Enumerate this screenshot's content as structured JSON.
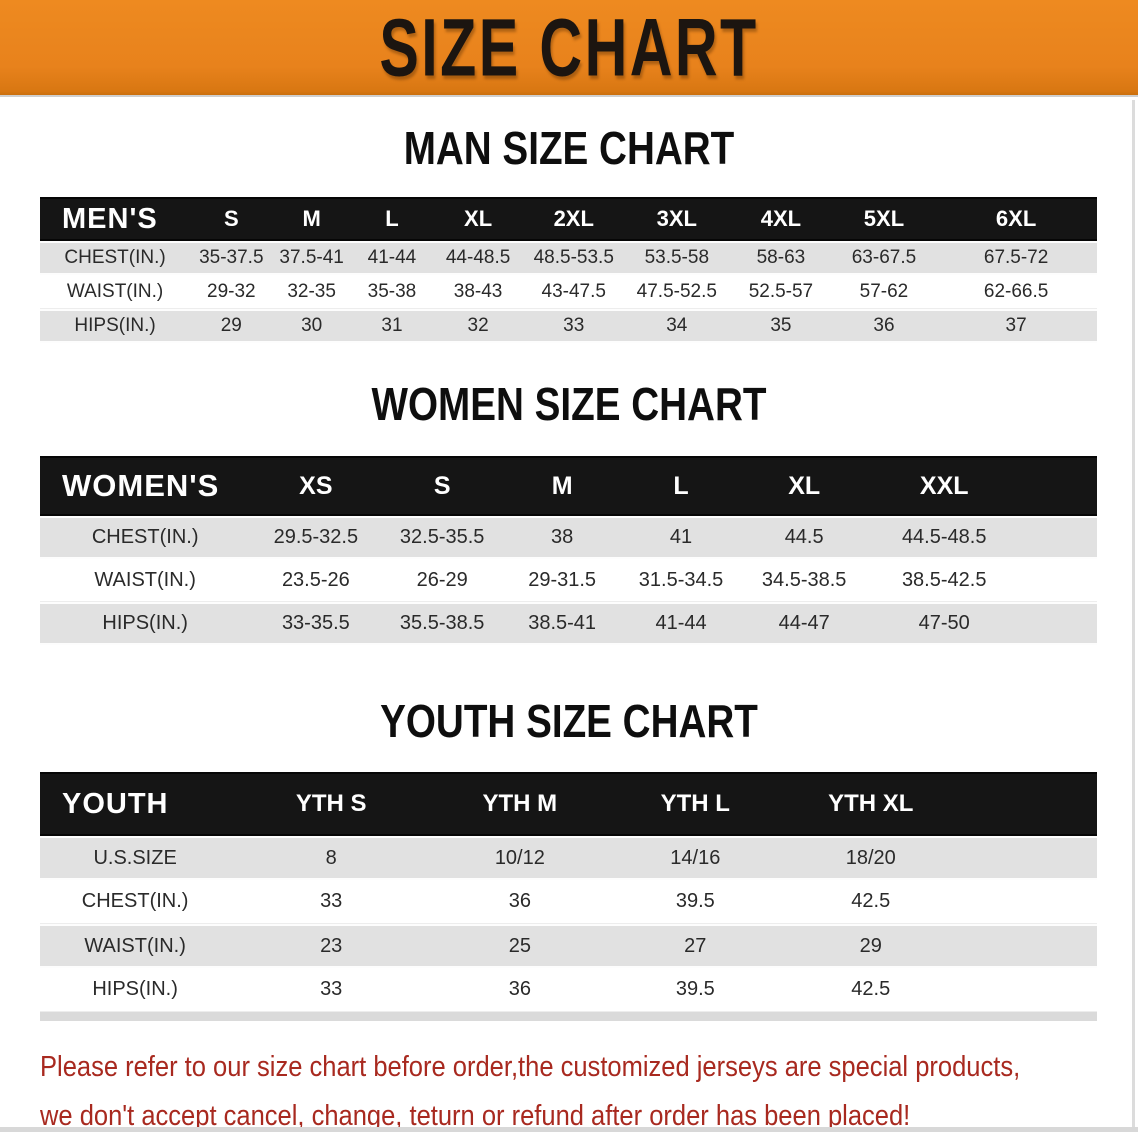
{
  "banner": {
    "title": "SIZE CHART"
  },
  "colors": {
    "banner_orange": "#E8821C",
    "table_header_black": "#151515",
    "stripe_gray": "#E1E1E1",
    "note_red": "#A8291F"
  },
  "sections": [
    {
      "heading": "MAN SIZE CHART",
      "table": {
        "label_header": "MEN'S",
        "columns": [
          "S",
          "M",
          "L",
          "XL",
          "2XL",
          "3XL",
          "4XL",
          "5XL",
          "6XL"
        ],
        "rows": [
          {
            "label": "CHEST(IN.)",
            "values": [
              "35-37.5",
              "37.5-41",
              "41-44",
              "44-48.5",
              "48.5-53.5",
              "53.5-58",
              "58-63",
              "63-67.5",
              "67.5-72"
            ]
          },
          {
            "label": "WAIST(IN.)",
            "values": [
              "29-32",
              "32-35",
              "35-38",
              "38-43",
              "43-47.5",
              "47.5-52.5",
              "52.5-57",
              "57-62",
              "62-66.5"
            ]
          },
          {
            "label": "HIPS(IN.)",
            "values": [
              "29",
              "30",
              "31",
              "32",
              "33",
              "34",
              "35",
              "36",
              "37"
            ]
          }
        ]
      }
    },
    {
      "heading": "WOMEN SIZE CHART",
      "table": {
        "label_header": "WOMEN'S",
        "columns": [
          "XS",
          "S",
          "M",
          "L",
          "XL",
          "XXL"
        ],
        "rows": [
          {
            "label": "CHEST(IN.)",
            "values": [
              "29.5-32.5",
              "32.5-35.5",
              "38",
              "41",
              "44.5",
              "44.5-48.5"
            ]
          },
          {
            "label": "WAIST(IN.)",
            "values": [
              "23.5-26",
              "26-29",
              "29-31.5",
              "31.5-34.5",
              "34.5-38.5",
              "38.5-42.5"
            ]
          },
          {
            "label": "HIPS(IN.)",
            "values": [
              "33-35.5",
              "35.5-38.5",
              "38.5-41",
              "41-44",
              "44-47",
              "47-50"
            ]
          }
        ]
      }
    },
    {
      "heading": "YOUTH SIZE CHART",
      "table": {
        "label_header": "YOUTH",
        "columns": [
          "YTH S",
          "YTH M",
          "YTH L",
          "YTH XL"
        ],
        "rows": [
          {
            "label": "U.S.SIZE",
            "values": [
              "8",
              "10/12",
              "14/16",
              "18/20"
            ]
          },
          {
            "label": "CHEST(IN.)",
            "values": [
              "33",
              "36",
              "39.5",
              "42.5"
            ]
          },
          {
            "label": "WAIST(IN.)",
            "values": [
              "23",
              "25",
              "27",
              "29"
            ]
          },
          {
            "label": "HIPS(IN.)",
            "values": [
              "33",
              "36",
              "39.5",
              "42.5"
            ]
          }
        ]
      }
    }
  ],
  "note": {
    "line1": "Please refer to our size chart before order,the customized jerseys are special products,",
    "line2": "we don't accept cancel, change, teturn or refund after order has been placed!"
  }
}
